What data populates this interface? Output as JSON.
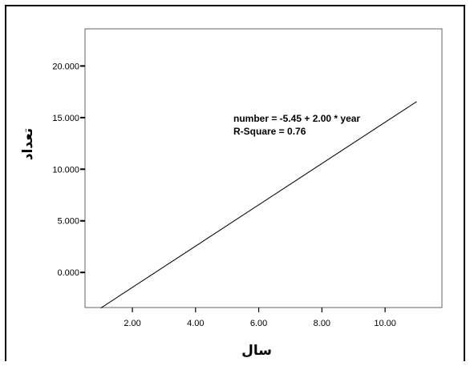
{
  "chart_data": {
    "type": "line",
    "xlabel": "سال",
    "ylabel": "تعداد",
    "x_ticks": [
      "2.00",
      "4.00",
      "6.00",
      "8.00",
      "10.00"
    ],
    "y_ticks": [
      "0.000",
      "5.000",
      "10.000",
      "15.000",
      "20.000"
    ],
    "xlim": [
      0.5,
      11.8
    ],
    "ylim": [
      -3.4,
      23.6
    ],
    "series": [
      {
        "x": [
          1,
          11
        ],
        "y": [
          -3.45,
          16.55
        ]
      }
    ],
    "annotations": [
      "number = -5.45 + 2.00 * year",
      "R-Square = 0.76"
    ],
    "grid": false,
    "line_color": "#000000"
  }
}
